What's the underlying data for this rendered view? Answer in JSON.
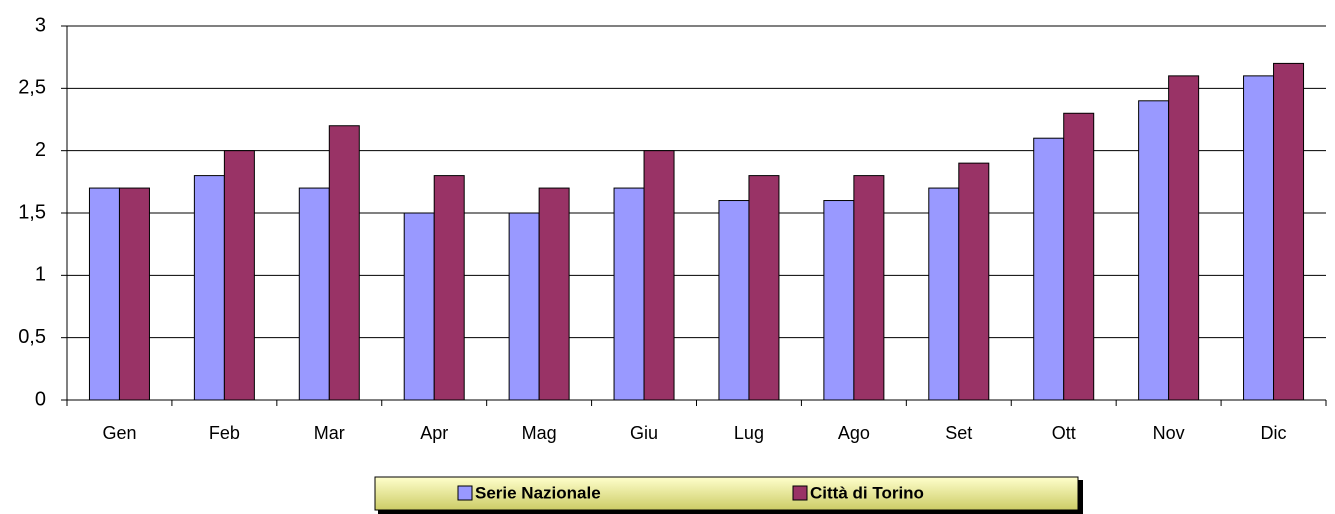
{
  "chart_data": {
    "type": "bar",
    "categories": [
      "Gen",
      "Feb",
      "Mar",
      "Apr",
      "Mag",
      "Giu",
      "Lug",
      "Ago",
      "Set",
      "Ott",
      "Nov",
      "Dic"
    ],
    "series": [
      {
        "name": "Serie Nazionale",
        "color": "#9999ff",
        "values": [
          1.7,
          1.8,
          1.7,
          1.5,
          1.5,
          1.7,
          1.6,
          1.6,
          1.7,
          2.1,
          2.4,
          2.6
        ]
      },
      {
        "name": "Città di Torino",
        "color": "#993366",
        "values": [
          1.7,
          2.0,
          2.2,
          1.8,
          1.7,
          2.0,
          1.8,
          1.8,
          1.9,
          2.3,
          2.6,
          2.7
        ]
      }
    ],
    "ylim": [
      0,
      3
    ],
    "yticks": [
      0,
      {
        "value": 0.5,
        "label": "0,5"
      },
      1,
      {
        "value": 1.5,
        "label": "1,5"
      },
      2,
      {
        "value": 2.5,
        "label": "2,5"
      },
      3
    ],
    "grid": true,
    "legend": "bottom"
  }
}
